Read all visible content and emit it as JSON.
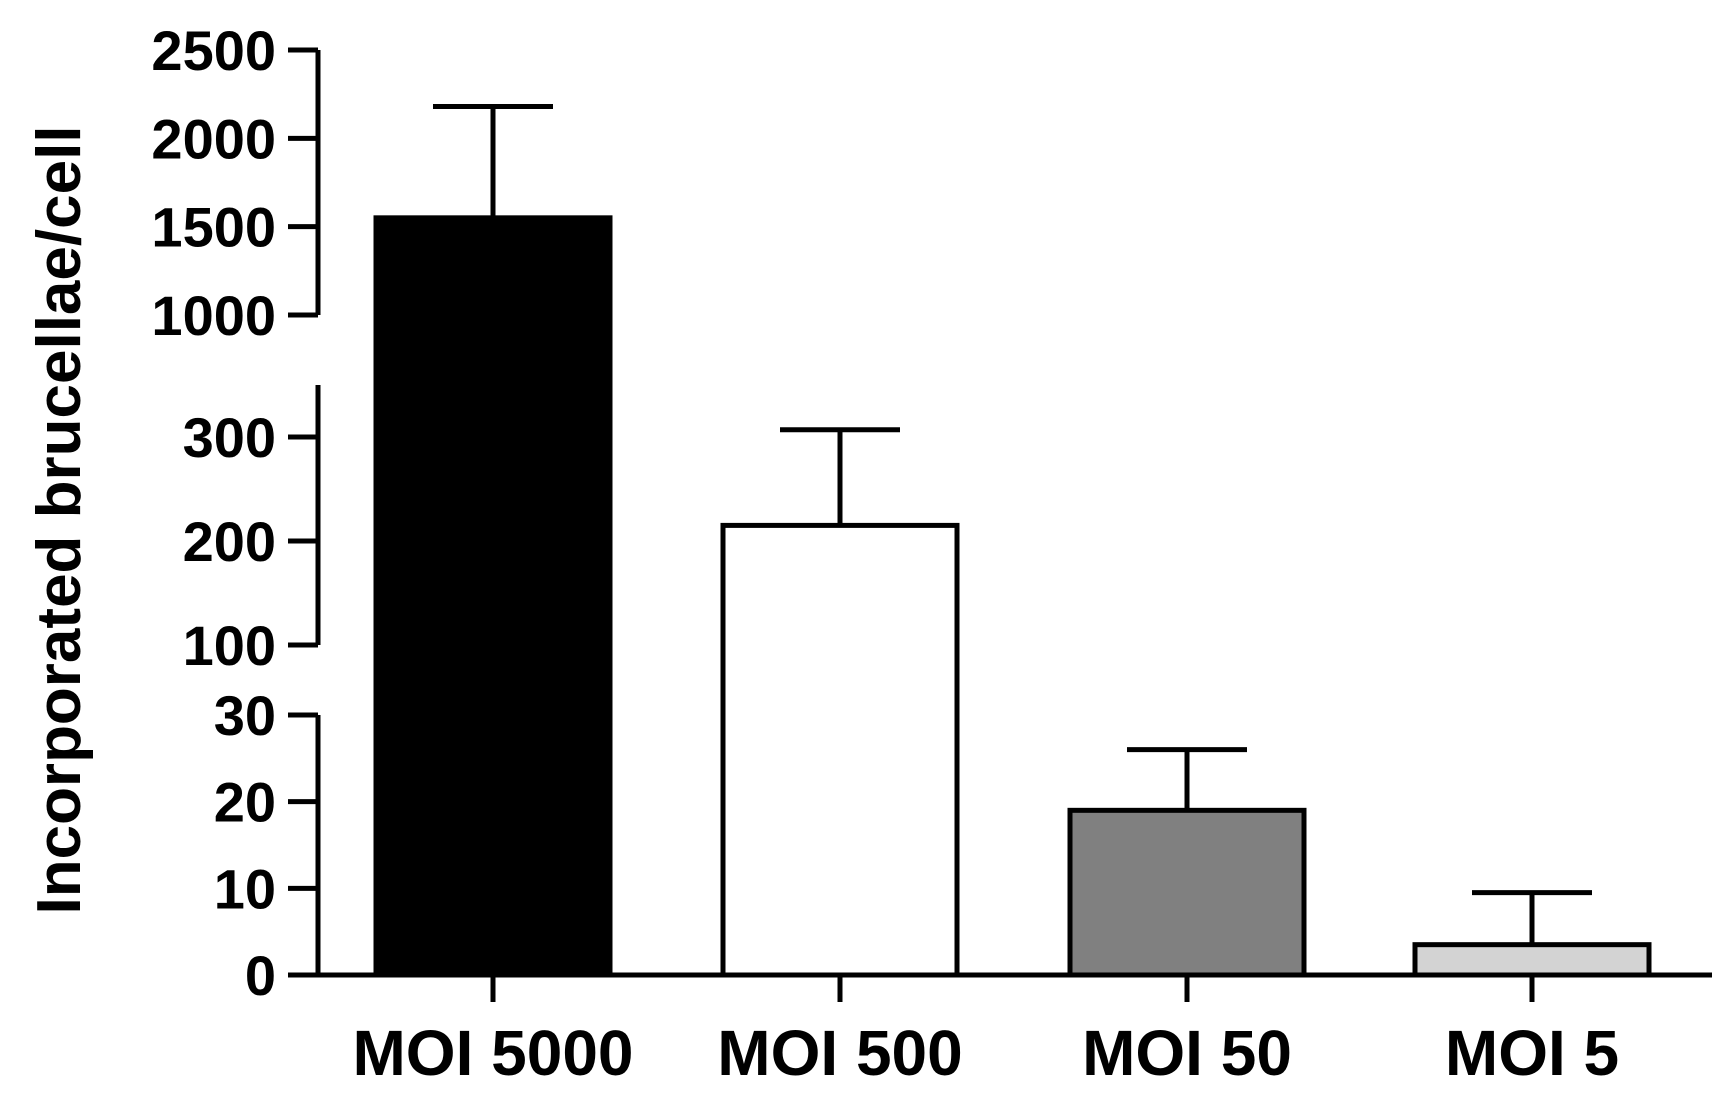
{
  "chart_data": {
    "type": "bar",
    "title": "",
    "xlabel": "",
    "ylabel": "Incorporated brucellae/cell",
    "categories": [
      "MOI 5000",
      "MOI 500",
      "MOI 50",
      "MOI 5"
    ],
    "values": [
      1550,
      215,
      19,
      3.5
    ],
    "error": [
      630,
      92,
      7,
      6
    ],
    "bar_colors": [
      "#000000",
      "#ffffff",
      "#808080",
      "#d3d3d3"
    ],
    "axis_segments": [
      {
        "ylim": [
          0,
          30
        ],
        "ticks": [
          "0",
          "10",
          "20",
          "30"
        ],
        "tick_values": [
          0,
          10,
          20,
          30
        ]
      },
      {
        "ylim": [
          100,
          350
        ],
        "ticks": [
          "100",
          "200",
          "300"
        ],
        "tick_values": [
          100,
          200,
          300
        ]
      },
      {
        "ylim": [
          1000,
          2500
        ],
        "ticks": [
          "1000",
          "1500",
          "2000",
          "2500"
        ],
        "tick_values": [
          1000,
          1500,
          2000,
          2500
        ]
      }
    ],
    "grid": false,
    "legend": "none"
  }
}
